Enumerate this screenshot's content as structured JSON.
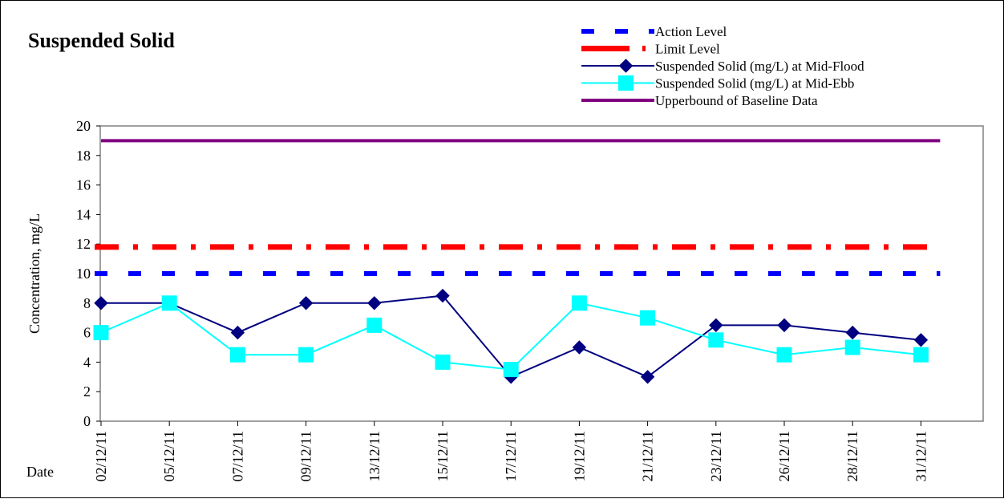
{
  "chart_data": {
    "type": "line",
    "title": "Suspended Solid",
    "xlabel": "Date",
    "ylabel": "Concentration, mg/L",
    "ylim": [
      0,
      20
    ],
    "y_ticks": [
      0,
      2,
      4,
      6,
      8,
      10,
      12,
      14,
      16,
      18,
      20
    ],
    "categories": [
      "02/12/11",
      "05/12/11",
      "07/12/11",
      "09/12/11",
      "13/12/11",
      "15/12/11",
      "17/12/11",
      "19/12/11",
      "21/12/11",
      "23/12/11",
      "26/12/11",
      "28/12/11",
      "31/12/11"
    ],
    "series": [
      {
        "name": "Action Level",
        "color": "#0000ff",
        "style": "dashed",
        "values": [
          10,
          10,
          10,
          10,
          10,
          10,
          10,
          10,
          10,
          10,
          10,
          10,
          10
        ]
      },
      {
        "name": "Limit Level",
        "color": "#ff0000",
        "style": "dash-dot",
        "values": [
          11.8,
          11.8,
          11.8,
          11.8,
          11.8,
          11.8,
          11.8,
          11.8,
          11.8,
          11.8,
          11.8,
          11.8,
          11.8
        ]
      },
      {
        "name": "Suspended Solid (mg/L) at Mid-Flood",
        "color": "#000080",
        "marker": "diamond",
        "values": [
          8,
          8,
          6,
          8,
          8,
          8.5,
          3,
          5,
          3,
          6.5,
          6.5,
          6,
          5.5
        ]
      },
      {
        "name": "Suspended Solid (mg/L) at Mid-Ebb",
        "color": "#00ffff",
        "marker": "square",
        "values": [
          6,
          8,
          4.5,
          4.5,
          6.5,
          4,
          3.5,
          8,
          7,
          5.5,
          4.5,
          5,
          4.5
        ]
      },
      {
        "name": "Upperbound of Baseline Data",
        "color": "#800080",
        "style": "solid",
        "values": [
          19,
          19,
          19,
          19,
          19,
          19,
          19,
          19,
          19,
          19,
          19,
          19,
          19
        ]
      }
    ],
    "legend_position": "top-right",
    "grid": false
  }
}
